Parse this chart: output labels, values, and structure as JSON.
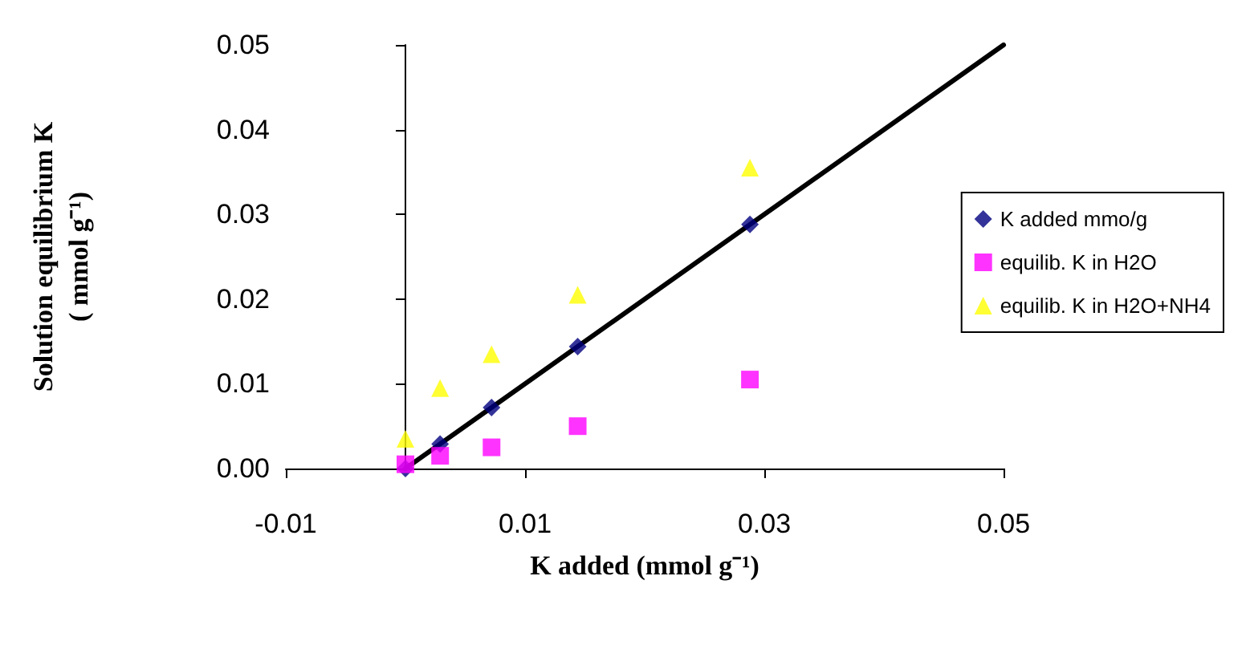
{
  "chart_data": {
    "type": "scatter",
    "xlabel": "K added (mmol g⁻¹)",
    "ylabel": "Solution equilibrium K\n( mmol g⁻¹)",
    "xlim": [
      -0.01,
      0.05
    ],
    "xticks": [
      -0.01,
      0.01,
      0.03,
      0.05
    ],
    "ylim": [
      0,
      0.05
    ],
    "yticks": [
      {
        "value": 0,
        "label": "0.00"
      },
      0.01,
      0.02,
      0.03,
      0.04,
      0.05
    ],
    "grid": false,
    "legend": "right",
    "series": [
      {
        "type": "line",
        "color": "#000000",
        "x": [
          0,
          0.05
        ],
        "values": [
          0,
          0.05
        ],
        "marker": "none",
        "line_style": "solid"
      },
      {
        "name": "K added mmo/g",
        "color": "#000080",
        "x": [
          0,
          0.0029,
          0.0072,
          0.0144,
          0.0288
        ],
        "values": [
          0,
          0.0029,
          0.0072,
          0.0144,
          0.0288
        ],
        "marker": "diamond"
      },
      {
        "name": "equilib. K in H2O",
        "color": "#ff00ff",
        "x": [
          0,
          0.0029,
          0.0072,
          0.0144,
          0.0288
        ],
        "values": [
          0.0005,
          0.0015,
          0.0025,
          0.005,
          0.0105
        ],
        "marker": "square"
      },
      {
        "name": "equilib. K in H2O+NH4",
        "color": "#ffff00",
        "x": [
          0,
          0.0029,
          0.0072,
          0.0144,
          0.0288
        ],
        "values": [
          0.0035,
          0.0095,
          0.0135,
          0.0205,
          0.0355
        ],
        "marker": "triangle"
      }
    ]
  }
}
